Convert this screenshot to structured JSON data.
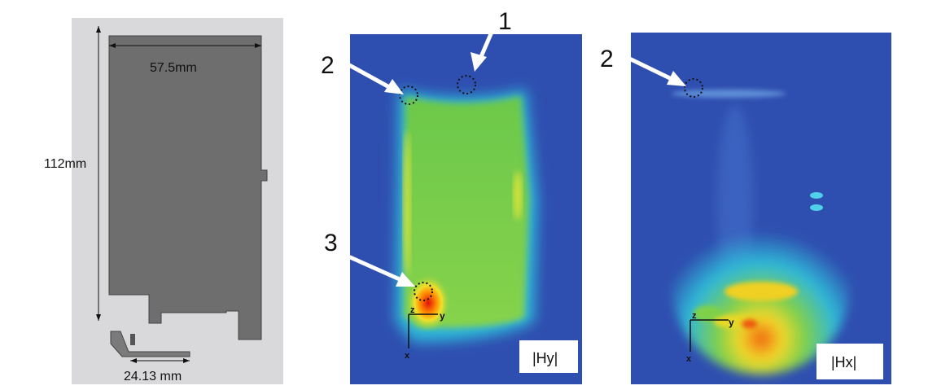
{
  "geometry_panel": {
    "width_label": "57.5mm",
    "height_label": "112mm",
    "feed_label": "24.13 mm"
  },
  "hy_panel": {
    "field_label": "|Hy|",
    "markers": [
      "1",
      "2",
      "3"
    ],
    "axes": {
      "z": "z",
      "y": "y",
      "x": "x"
    }
  },
  "hx_panel": {
    "field_label": "|Hx|",
    "markers": [
      "2"
    ],
    "axes": {
      "z": "z",
      "y": "y",
      "x": "x"
    }
  },
  "colors": {
    "background_field": "#2f4fb0",
    "ground_plane": "#6e6e6e",
    "panel_bg": "#d9d9dc"
  }
}
